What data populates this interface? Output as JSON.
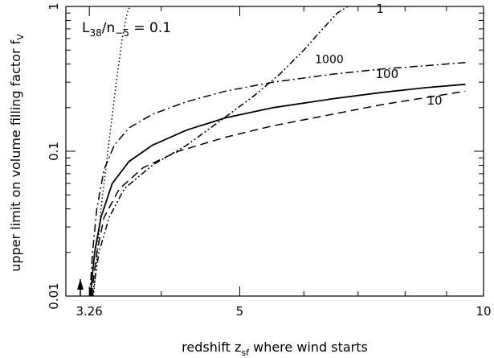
{
  "chart_data": {
    "type": "line",
    "xlabel": "redshift z",
    "xlabel_sub": "sf",
    "xlabel_tail": " where wind starts",
    "ylabel": "upper limit on volume filling factor f",
    "ylabel_sub": "V",
    "xscale": "log",
    "yscale": "log",
    "xlim": [
      3.05,
      10.0
    ],
    "ylim": [
      0.01,
      1.0
    ],
    "grid": false,
    "x_ticks": [
      {
        "value": 3.26,
        "label": "3.26"
      },
      {
        "value": 5,
        "label": "5"
      },
      {
        "value": 10,
        "label": "10"
      }
    ],
    "y_ticks": [
      {
        "value": 0.01,
        "label": "0.01"
      },
      {
        "value": 0.1,
        "label": "0.1"
      },
      {
        "value": 1,
        "label": "1"
      }
    ],
    "annotation": {
      "main": "L",
      "main_sub": "38",
      "slash": "/n",
      "slash_sub": "−5",
      "eq": " = 0.1"
    },
    "series": [
      {
        "name": "0.1",
        "style": "dotted",
        "x": [
          3.3,
          3.37,
          3.45,
          3.52,
          3.58,
          3.63,
          3.66
        ],
        "y": [
          0.01,
          0.04,
          0.12,
          0.3,
          0.6,
          0.9,
          1.0
        ]
      },
      {
        "name": "1",
        "style": "dash-dot-dot",
        "x": [
          3.29,
          3.35,
          3.45,
          3.6,
          3.9,
          4.3,
          4.75,
          5.2,
          5.6,
          6.0,
          6.3,
          6.6,
          6.8
        ],
        "y": [
          0.01,
          0.02,
          0.035,
          0.055,
          0.08,
          0.11,
          0.165,
          0.24,
          0.34,
          0.5,
          0.68,
          0.9,
          1.0
        ]
      },
      {
        "name": "10",
        "style": "dashed",
        "x": [
          3.28,
          3.33,
          3.4,
          3.55,
          3.8,
          4.2,
          4.8,
          5.5,
          6.5,
          7.5,
          8.5,
          9.5
        ],
        "y": [
          0.01,
          0.02,
          0.035,
          0.055,
          0.077,
          0.1,
          0.125,
          0.15,
          0.18,
          0.21,
          0.235,
          0.26
        ]
      },
      {
        "name": "100",
        "style": "solid",
        "x": [
          3.27,
          3.31,
          3.37,
          3.48,
          3.65,
          3.9,
          4.3,
          4.8,
          5.5,
          6.5,
          7.5,
          8.5,
          9.5
        ],
        "y": [
          0.01,
          0.02,
          0.035,
          0.06,
          0.085,
          0.11,
          0.14,
          0.17,
          0.2,
          0.23,
          0.255,
          0.275,
          0.29
        ]
      },
      {
        "name": "1000",
        "style": "dash-dot",
        "x": [
          3.265,
          3.29,
          3.33,
          3.4,
          3.5,
          3.65,
          3.9,
          4.3,
          4.8,
          5.5,
          6.5,
          7.5,
          8.5,
          9.5
        ],
        "y": [
          0.01,
          0.02,
          0.04,
          0.075,
          0.11,
          0.145,
          0.18,
          0.22,
          0.26,
          0.3,
          0.34,
          0.37,
          0.39,
          0.41
        ]
      }
    ],
    "series_labels": [
      {
        "series": "1000",
        "x": 6.45,
        "y": 0.405
      },
      {
        "series": "100",
        "x": 7.6,
        "y": 0.32
      },
      {
        "series": "10",
        "x": 8.7,
        "y": 0.21
      },
      {
        "series": "1",
        "x": 7.45,
        "y": 0.9
      }
    ]
  }
}
